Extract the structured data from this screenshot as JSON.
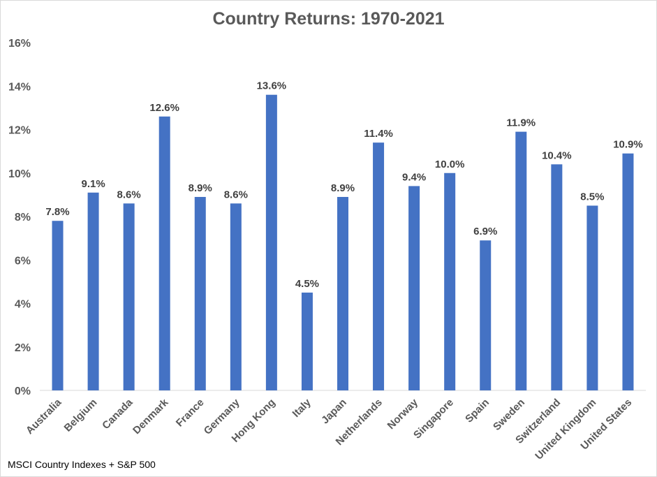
{
  "chart_data": {
    "type": "bar",
    "title": "Country Returns: 1970-2021",
    "source": "MSCI Country Indexes + S&P 500",
    "xlabel": "",
    "ylabel": "",
    "ylim": [
      0,
      16
    ],
    "yticks": [
      "0%",
      "2%",
      "4%",
      "6%",
      "8%",
      "10%",
      "12%",
      "14%",
      "16%"
    ],
    "grid": false,
    "legend": "none",
    "bar_color": "#4472C4",
    "categories": [
      "Australia",
      "Belgium",
      "Canada",
      "Denmark",
      "France",
      "Germany",
      "Hong Kong",
      "Italy",
      "Japan",
      "Netherlands",
      "Norway",
      "Singapore",
      "Spain",
      "Sweden",
      "Switzerland",
      "United Kingdom",
      "United States"
    ],
    "values": [
      7.8,
      9.1,
      8.6,
      12.6,
      8.9,
      8.6,
      13.6,
      4.5,
      8.9,
      11.4,
      9.4,
      10.0,
      6.9,
      11.9,
      10.4,
      8.5,
      10.9
    ],
    "data_labels": [
      "7.8%",
      "9.1%",
      "8.6%",
      "12.6%",
      "8.9%",
      "8.6%",
      "13.6%",
      "4.5%",
      "8.9%",
      "11.4%",
      "9.4%",
      "10.0%",
      "6.9%",
      "11.9%",
      "10.4%",
      "8.5%",
      "10.9%"
    ]
  }
}
